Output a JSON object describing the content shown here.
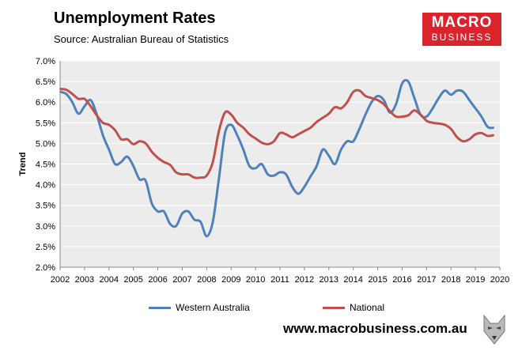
{
  "header": {
    "title": "Unemployment Rates",
    "source": "Source: Australian Bureau of Statistics"
  },
  "logo": {
    "line1": "MACRO",
    "line2": "BUSINESS"
  },
  "footer": {
    "website": "www.macrobusiness.com.au"
  },
  "colors": {
    "western_australia": "#4f81bd",
    "national": "#c0504d",
    "plot_bg": "#ececec",
    "grid": "#ffffff"
  },
  "chart_data": {
    "type": "line",
    "title": "Unemployment Rates",
    "xlabel": "",
    "ylabel": "Trend",
    "xlim": [
      2002,
      2020
    ],
    "ylim": [
      2.0,
      7.0
    ],
    "x_ticks": [
      "2002",
      "2003",
      "2004",
      "2005",
      "2006",
      "2007",
      "2008",
      "2009",
      "2010",
      "2011",
      "2012",
      "2013",
      "2014",
      "2015",
      "2016",
      "2017",
      "2018",
      "2019",
      "2020"
    ],
    "y_ticks": [
      "2.0%",
      "2.5%",
      "3.0%",
      "3.5%",
      "4.0%",
      "4.5%",
      "5.0%",
      "5.5%",
      "6.0%",
      "6.5%",
      "7.0%"
    ],
    "y_tick_values": [
      2.0,
      2.5,
      3.0,
      3.5,
      4.0,
      4.5,
      5.0,
      5.5,
      6.0,
      6.5,
      7.0
    ],
    "grid": true,
    "legend": "bottom",
    "series": [
      {
        "name": "Western Australia",
        "color": "#4f81bd",
        "x": [
          2002.0,
          2002.25,
          2002.5,
          2002.75,
          2003.0,
          2003.25,
          2003.5,
          2003.75,
          2004.0,
          2004.25,
          2004.5,
          2004.75,
          2005.0,
          2005.25,
          2005.5,
          2005.75,
          2006.0,
          2006.25,
          2006.5,
          2006.75,
          2007.0,
          2007.25,
          2007.5,
          2007.75,
          2008.0,
          2008.25,
          2008.5,
          2008.75,
          2009.0,
          2009.25,
          2009.5,
          2009.75,
          2010.0,
          2010.25,
          2010.5,
          2010.75,
          2011.0,
          2011.25,
          2011.5,
          2011.75,
          2012.0,
          2012.25,
          2012.5,
          2012.75,
          2013.0,
          2013.25,
          2013.5,
          2013.75,
          2014.0,
          2014.25,
          2014.5,
          2014.75,
          2015.0,
          2015.25,
          2015.5,
          2015.75,
          2016.0,
          2016.25,
          2016.5,
          2016.75,
          2017.0,
          2017.25,
          2017.5,
          2017.75,
          2018.0,
          2018.25,
          2018.5,
          2018.75,
          2019.0,
          2019.25,
          2019.5,
          2019.75
        ],
        "values": [
          6.25,
          6.2,
          6.0,
          5.72,
          5.9,
          6.05,
          5.7,
          5.2,
          4.85,
          4.5,
          4.55,
          4.68,
          4.45,
          4.13,
          4.1,
          3.55,
          3.35,
          3.35,
          3.05,
          3.0,
          3.3,
          3.35,
          3.15,
          3.1,
          2.75,
          3.1,
          4.15,
          5.25,
          5.45,
          5.2,
          4.85,
          4.45,
          4.4,
          4.5,
          4.25,
          4.22,
          4.3,
          4.25,
          3.95,
          3.78,
          3.95,
          4.2,
          4.45,
          4.85,
          4.7,
          4.5,
          4.85,
          5.05,
          5.05,
          5.35,
          5.7,
          6.0,
          6.15,
          6.05,
          5.75,
          5.95,
          6.45,
          6.5,
          6.1,
          5.7,
          5.65,
          5.85,
          6.1,
          6.28,
          6.18,
          6.28,
          6.25,
          6.05,
          5.85,
          5.65,
          5.4,
          5.38
        ]
      },
      {
        "name": "National",
        "color": "#c0504d",
        "x": [
          2002.0,
          2002.25,
          2002.5,
          2002.75,
          2003.0,
          2003.25,
          2003.5,
          2003.75,
          2004.0,
          2004.25,
          2004.5,
          2004.75,
          2005.0,
          2005.25,
          2005.5,
          2005.75,
          2006.0,
          2006.25,
          2006.5,
          2006.75,
          2007.0,
          2007.25,
          2007.5,
          2007.75,
          2008.0,
          2008.25,
          2008.5,
          2008.75,
          2009.0,
          2009.25,
          2009.5,
          2009.75,
          2010.0,
          2010.25,
          2010.5,
          2010.75,
          2011.0,
          2011.25,
          2011.5,
          2011.75,
          2012.0,
          2012.25,
          2012.5,
          2012.75,
          2013.0,
          2013.25,
          2013.5,
          2013.75,
          2014.0,
          2014.25,
          2014.5,
          2014.75,
          2015.0,
          2015.25,
          2015.5,
          2015.75,
          2016.0,
          2016.25,
          2016.5,
          2016.75,
          2017.0,
          2017.25,
          2017.5,
          2017.75,
          2018.0,
          2018.25,
          2018.5,
          2018.75,
          2019.0,
          2019.25,
          2019.5,
          2019.75
        ],
        "values": [
          6.32,
          6.3,
          6.2,
          6.08,
          6.08,
          5.9,
          5.68,
          5.5,
          5.45,
          5.32,
          5.1,
          5.1,
          4.98,
          5.05,
          5.0,
          4.8,
          4.65,
          4.55,
          4.48,
          4.3,
          4.25,
          4.25,
          4.17,
          4.17,
          4.22,
          4.55,
          5.3,
          5.75,
          5.7,
          5.5,
          5.38,
          5.22,
          5.12,
          5.02,
          4.98,
          5.05,
          5.25,
          5.22,
          5.15,
          5.22,
          5.3,
          5.38,
          5.52,
          5.62,
          5.72,
          5.88,
          5.85,
          6.0,
          6.25,
          6.28,
          6.15,
          6.1,
          6.05,
          5.95,
          5.78,
          5.65,
          5.65,
          5.68,
          5.8,
          5.7,
          5.55,
          5.5,
          5.48,
          5.45,
          5.35,
          5.15,
          5.05,
          5.1,
          5.22,
          5.25,
          5.18,
          5.2
        ]
      }
    ]
  }
}
